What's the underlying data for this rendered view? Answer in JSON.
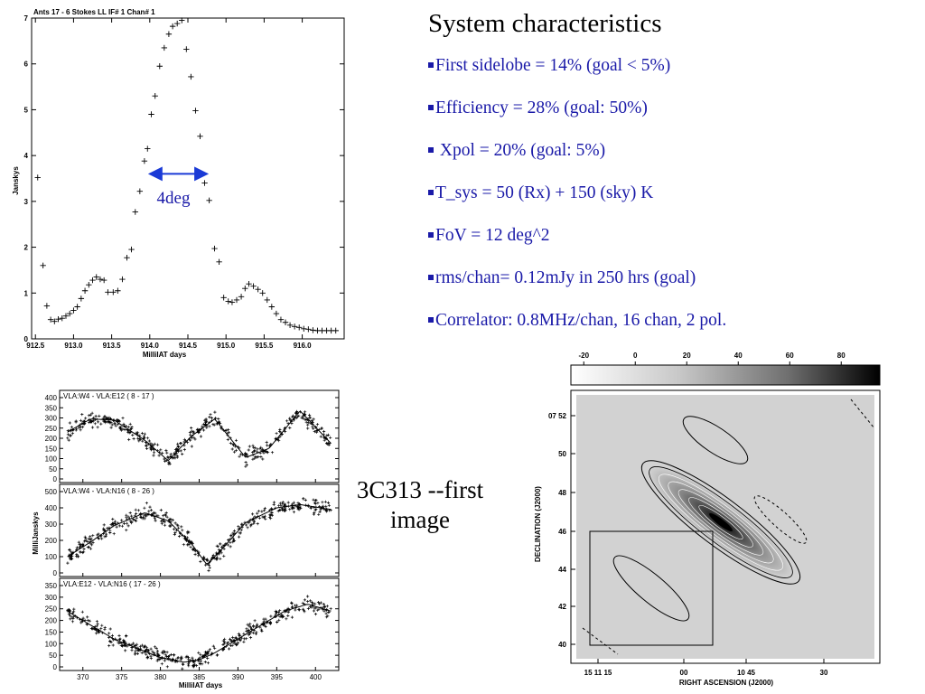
{
  "slide": {
    "heading": "System characteristics",
    "bullets": [
      "First sidelobe = 14%  (goal < 5%)",
      "Efficiency = 28%  (goal: 50%)",
      " Xpol = 20% (goal: 5%)",
      "T_sys = 50 (Rx) + 150 (sky) K",
      "FoV = 12 deg^2",
      "rms/chan=  0.12mJy in 250 hrs (goal)",
      "Correlator: 0.8MHz/chan, 16 chan,  2 pol."
    ],
    "caption_line1": "3C313 --first",
    "caption_line2": "image",
    "colors": {
      "bullet_text": "#1a1aa8",
      "arrow": "#1a3ad6"
    }
  },
  "chart_data": [
    {
      "type": "scatter",
      "title": "Ants 17 - 6   Stokes LL  IF# 1  Chan# 1",
      "xlabel": "MilliIAT days",
      "ylabel": "Janskys",
      "xlim": [
        912.45,
        916.55
      ],
      "ylim": [
        0,
        7
      ],
      "xticks": [
        912.5,
        913.0,
        913.5,
        914.0,
        914.5,
        915.0,
        915.5,
        916.0
      ],
      "yticks": [
        0,
        1,
        2,
        3,
        4,
        5,
        6,
        7
      ],
      "annotation": "4deg",
      "arrow_x": [
        914.0,
        914.75
      ],
      "arrow_y": 3.6,
      "x": [
        912.53,
        912.6,
        912.65,
        912.7,
        912.75,
        912.8,
        912.85,
        912.9,
        912.95,
        913.0,
        913.05,
        913.1,
        913.15,
        913.2,
        913.25,
        913.3,
        913.35,
        913.4,
        913.45,
        913.52,
        913.58,
        913.64,
        913.7,
        913.76,
        913.81,
        913.87,
        913.93,
        913.97,
        914.02,
        914.07,
        914.13,
        914.19,
        914.25,
        914.3,
        914.36,
        914.42,
        914.48,
        914.54,
        914.6,
        914.66,
        914.72,
        914.78,
        914.85,
        914.91,
        914.97,
        915.03,
        915.08,
        915.14,
        915.2,
        915.25,
        915.3,
        915.36,
        915.42,
        915.48,
        915.54,
        915.6,
        915.66,
        915.72,
        915.78,
        915.84,
        915.9,
        915.96,
        916.02,
        916.08,
        916.14,
        916.2,
        916.26,
        916.32,
        916.38,
        916.44
      ],
      "y": [
        3.52,
        1.6,
        0.72,
        0.42,
        0.38,
        0.43,
        0.45,
        0.5,
        0.55,
        0.62,
        0.7,
        0.88,
        1.05,
        1.18,
        1.28,
        1.35,
        1.3,
        1.28,
        1.02,
        1.02,
        1.05,
        1.3,
        1.77,
        1.95,
        2.77,
        3.22,
        3.88,
        4.15,
        4.9,
        5.3,
        5.95,
        6.35,
        6.65,
        6.82,
        6.88,
        6.95,
        6.32,
        5.72,
        4.98,
        4.42,
        3.4,
        3.02,
        1.97,
        1.68,
        0.9,
        0.82,
        0.8,
        0.85,
        0.92,
        1.1,
        1.2,
        1.15,
        1.08,
        1.0,
        0.85,
        0.7,
        0.55,
        0.42,
        0.36,
        0.3,
        0.27,
        0.25,
        0.22,
        0.21,
        0.19,
        0.18,
        0.18,
        0.18,
        0.18,
        0.18
      ]
    },
    {
      "type": "scatter",
      "title": "VLA:W4 - VLA:E12 ( 8 - 17 )",
      "ylim": [
        0,
        400
      ],
      "yticks": [
        0,
        50,
        100,
        150,
        200,
        250,
        300,
        350,
        400
      ],
      "xlim": [
        367,
        403
      ],
      "x": [
        368,
        371,
        374,
        378,
        381,
        384,
        387,
        391,
        394,
        398,
        402
      ],
      "y": [
        230,
        295,
        290,
        190,
        90,
        210,
        295,
        105,
        150,
        335,
        175
      ]
    },
    {
      "type": "scatter",
      "title": "VLA:W4 - VLA:N16 ( 8 - 26 )",
      "ylabel": "MilliJanskys",
      "ylim": [
        0,
        500
      ],
      "yticks": [
        0,
        100,
        200,
        300,
        400,
        500
      ],
      "xlim": [
        367,
        403
      ],
      "x": [
        368,
        371,
        374,
        378,
        381,
        384,
        386,
        388,
        391,
        395,
        398,
        402
      ],
      "y": [
        100,
        190,
        290,
        370,
        320,
        180,
        50,
        150,
        310,
        400,
        420,
        390
      ]
    },
    {
      "type": "scatter",
      "title": "VLA:E12 - VLA:N16 ( 17 - 26 )",
      "xlabel": "MilliIAT days",
      "ylim": [
        0,
        350
      ],
      "yticks": [
        0,
        50,
        100,
        150,
        200,
        250,
        300,
        350
      ],
      "xticks": [
        370,
        375,
        380,
        385,
        390,
        395,
        400
      ],
      "xlim": [
        367,
        403
      ],
      "x": [
        368,
        371,
        374,
        377,
        380,
        383,
        385,
        387,
        390,
        393,
        396,
        399,
        402
      ],
      "y": [
        240,
        180,
        120,
        80,
        40,
        20,
        30,
        60,
        120,
        180,
        240,
        270,
        240
      ]
    },
    {
      "type": "heatmap",
      "xlabel": "RIGHT ASCENSION (J2000)",
      "ylabel": "DECLINATION (J2000)",
      "colorbar_ticks": [
        -20,
        0,
        20,
        40,
        60,
        80
      ],
      "colorbar_range": [
        -25,
        95
      ],
      "x_tick_labels": [
        "15 11 15",
        "00",
        "10 45",
        "30"
      ],
      "y_tick_labels": [
        "07 52",
        "50",
        "48",
        "46",
        "44",
        "42",
        "40"
      ]
    }
  ]
}
